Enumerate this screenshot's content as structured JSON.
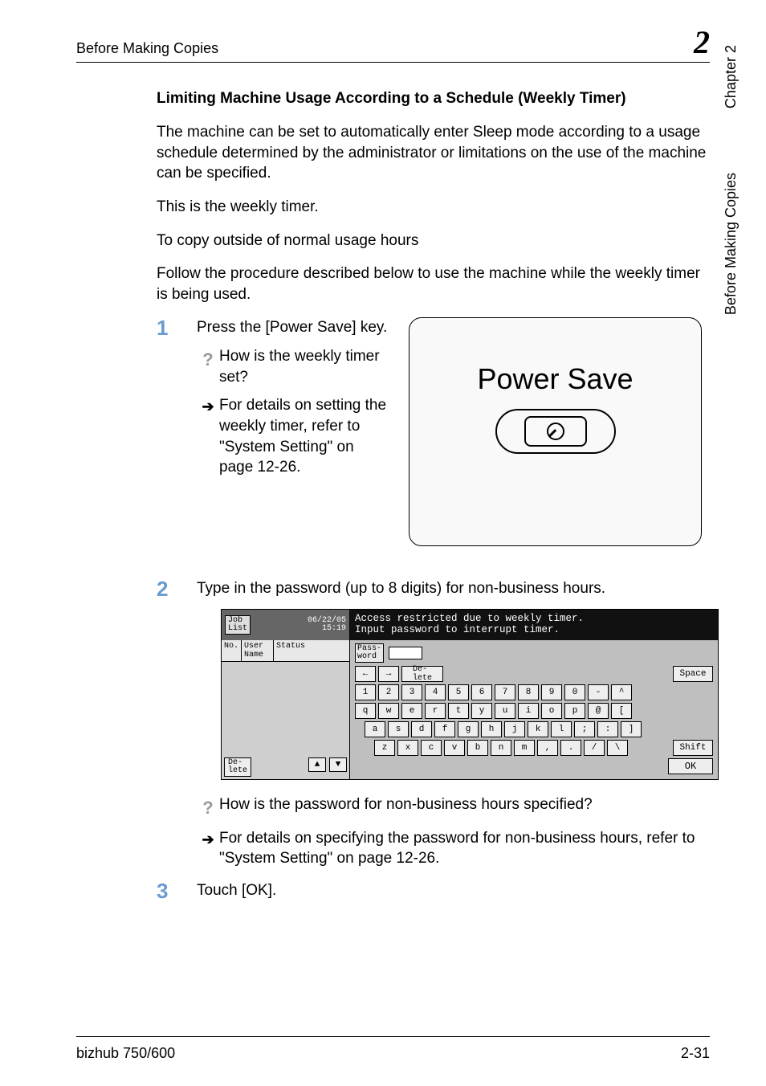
{
  "header": {
    "running": "Before Making Copies",
    "chapter_number": "2"
  },
  "side": {
    "chapter_label": "Chapter 2",
    "running": "Before Making Copies"
  },
  "section_heading": "Limiting Machine Usage According to a Schedule (Weekly Timer)",
  "paragraphs": {
    "p1": "The machine can be set to automatically enter Sleep mode according to a usage schedule determined by the administrator or limitations on the use of the machine can be specified.",
    "p2": "This is the weekly timer.",
    "p3": "To copy outside of normal usage hours",
    "p4": "Follow the procedure described below to use the machine while the weekly timer is being used."
  },
  "steps": {
    "s1": {
      "num": "1",
      "text": "Press the [Power Save] key.",
      "q": "How is the weekly timer set?",
      "arrow": "For details on setting the weekly timer, refer to \"System Setting\" on page 12-26."
    },
    "s2": {
      "num": "2",
      "text": "Type in the password (up to 8 digits) for non-business hours.",
      "q": "How is the password for non-business hours specified?",
      "arrow": "For details on specifying the password for non-business hours, refer to \"System Setting\" on page 12-26."
    },
    "s3": {
      "num": "3",
      "text": "Touch [OK]."
    }
  },
  "power_panel": {
    "title": "Power Save"
  },
  "lcd": {
    "job_list": "Job\nList",
    "date": "06/22/05",
    "time": "15:19",
    "msg1": "Access restricted due to weekly timer.",
    "msg2": "Input password to interrupt timer.",
    "col_no": "No.",
    "col_user": "User\nName",
    "col_status": "Status",
    "delete_btn": "De-\nlete",
    "pass_label": "Pass-\nword",
    "row1_keys": [
      "←",
      "→",
      "De-\nlete"
    ],
    "space_key": "Space",
    "num_keys": [
      "1",
      "2",
      "3",
      "4",
      "5",
      "6",
      "7",
      "8",
      "9",
      "0",
      "-",
      "^"
    ],
    "qwerty1": [
      "q",
      "w",
      "e",
      "r",
      "t",
      "y",
      "u",
      "i",
      "o",
      "p",
      "@",
      "["
    ],
    "qwerty2": [
      "a",
      "s",
      "d",
      "f",
      "g",
      "h",
      "j",
      "k",
      "l",
      ";",
      ":",
      "]"
    ],
    "qwerty3": [
      "z",
      "x",
      "c",
      "v",
      "b",
      "n",
      "m",
      ",",
      ".",
      "/",
      "\\"
    ],
    "shift_key": "Shift",
    "ok_key": "OK"
  },
  "footer": {
    "model": "bizhub 750/600",
    "page": "2-31"
  },
  "colors": {
    "step_num": "#6a9bd1",
    "lcd_bg": "#bfbfbf",
    "lcd_dark": "#111111"
  }
}
